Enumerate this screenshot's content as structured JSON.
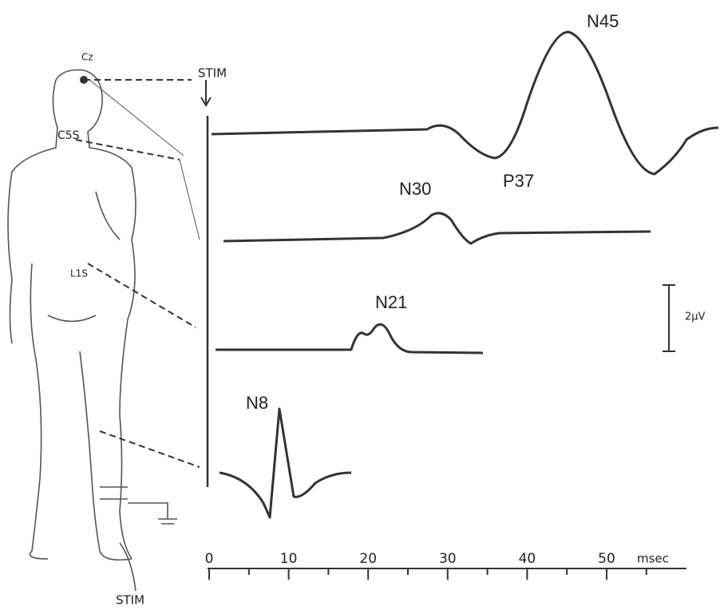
{
  "stim_top": "STIM",
  "stim_bottom": "STIM",
  "electrodes": [
    "Cz",
    "C5S",
    "L1S"
  ],
  "peaks": [
    "N45",
    "P37",
    "N30",
    "N21",
    "N8"
  ],
  "scale_label": "2µV",
  "axis": {
    "ticks": [
      "0",
      "10",
      "20",
      "30",
      "40",
      "50"
    ],
    "unit": "msec"
  }
}
